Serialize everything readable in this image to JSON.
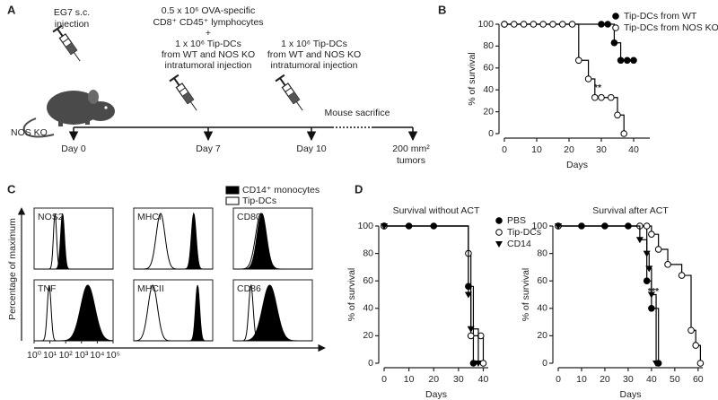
{
  "panel_a": {
    "label": "A",
    "injection_1": [
      "EG7 s.c.",
      "injection"
    ],
    "injection_2": [
      "0.5 x 10⁶ OVA-specific",
      "CD8⁺ CD45⁺ lymphocytes",
      "+",
      "1 x 10⁶ Tip-DCs",
      "from WT and NOS KO",
      "intratumoral injection"
    ],
    "injection_3": [
      "1 x 10⁶ Tip-DCs",
      "from WT and NOS KO",
      "intratumoral injection"
    ],
    "mouse_label": "NOS KO",
    "sacrifice": "Mouse sacrifice",
    "timepoints": [
      "Day 0",
      "Day 7",
      "Day 10"
    ],
    "endpoint": [
      "200 mm²",
      "tumors"
    ]
  },
  "chart_data": [
    {
      "type": "survival",
      "panel": "B",
      "xlabel": "Days",
      "ylabel": "% of survival",
      "xlim": [
        0,
        45
      ],
      "xticks": [
        0,
        10,
        20,
        30,
        40
      ],
      "ylim": [
        0,
        100
      ],
      "yticks": [
        0,
        20,
        40,
        60,
        80,
        100
      ],
      "legend": "top-right",
      "annotation": "**",
      "series": [
        {
          "name": "Tip-DCs from WT",
          "color": "#000000",
          "marker": "filled-circle",
          "x": [
            0,
            30,
            32,
            34,
            36,
            38,
            40
          ],
          "values": [
            100,
            100,
            100,
            83,
            67,
            67,
            67
          ]
        },
        {
          "name": "Tip-DCs from NOS KO",
          "color": "#000000",
          "marker": "open-circle",
          "x": [
            0,
            3,
            6,
            9,
            12,
            15,
            18,
            21,
            23,
            26,
            28,
            30,
            33,
            35,
            37
          ],
          "values": [
            100,
            100,
            100,
            100,
            100,
            100,
            100,
            100,
            67,
            50,
            33,
            33,
            33,
            17,
            0
          ]
        }
      ]
    },
    {
      "type": "flow-histogram",
      "panel": "C",
      "ylabel": "Percentage of maximum",
      "xscale": "log",
      "xlim": [
        1,
        100000
      ],
      "xticks": [
        {
          "value": 1,
          "label": "10⁰"
        },
        {
          "value": 10,
          "label": "10¹"
        },
        {
          "value": 100,
          "label": "10²"
        },
        {
          "value": 1000,
          "label": "10³"
        },
        {
          "value": 10000,
          "label": "10⁴"
        },
        {
          "value": 100000,
          "label": "10⁵"
        }
      ],
      "series": [
        {
          "name": "CD14⁺ monocytes",
          "fill": "#000000",
          "stroke": "#000000"
        },
        {
          "name": "Tip-DCs",
          "fill": "none",
          "stroke": "#000000"
        }
      ],
      "panels": [
        {
          "label": "NOS2",
          "values": [
            {
              "peak": 63,
              "spread": 0.12
            },
            {
              "peak": 21,
              "spread": 0.1
            }
          ]
        },
        {
          "label": "MHCI",
          "values": [
            {
              "peak": 6300,
              "spread": 0.15
            },
            {
              "peak": 50,
              "spread": 0.28
            }
          ]
        },
        {
          "label": "CD80",
          "values": [
            {
              "peak": 63,
              "spread": 0.3
            },
            {
              "peak": 55,
              "spread": 0.33
            }
          ]
        },
        {
          "label": "TNF",
          "values": [
            {
              "peak": 2500,
              "spread": 0.45
            },
            {
              "peak": 9,
              "spread": 0.12
            }
          ]
        },
        {
          "label": "MHCII",
          "values": [
            {
              "peak": 11000,
              "spread": 0.13
            },
            {
              "peak": 16,
              "spread": 0.3
            }
          ]
        },
        {
          "label": "CD86",
          "values": [
            {
              "peak": 200,
              "spread": 0.45
            },
            {
              "peak": 13,
              "spread": 0.14
            }
          ]
        }
      ]
    },
    {
      "type": "survival",
      "panel": "D",
      "title": "Survival without ACT",
      "xlabel": "Days",
      "ylabel": "% of survival",
      "xlim": [
        0,
        42
      ],
      "xticks": [
        0,
        10,
        20,
        30,
        40
      ],
      "ylim": [
        0,
        100
      ],
      "yticks": [
        0,
        20,
        40,
        60,
        80,
        100
      ],
      "legend": "outside-right",
      "series": [
        {
          "name": "PBS",
          "color": "#000000",
          "marker": "filled-circle",
          "x": [
            0,
            10,
            20,
            34,
            36
          ],
          "values": [
            100,
            100,
            100,
            56,
            0
          ]
        },
        {
          "name": "Tip-DCs",
          "color": "#000000",
          "marker": "open-circle",
          "x": [
            0,
            34,
            35,
            39,
            40
          ],
          "values": [
            100,
            80,
            20,
            20,
            0
          ]
        },
        {
          "name": "CD14",
          "color": "#000000",
          "marker": "filled-triangle-down",
          "x": [
            0,
            34,
            35,
            38
          ],
          "values": [
            100,
            50,
            25,
            0
          ]
        }
      ]
    },
    {
      "type": "survival",
      "title": "Survival after ACT",
      "xlabel": "Days",
      "ylabel": "% of survival",
      "xlim": [
        0,
        62
      ],
      "xticks": [
        0,
        10,
        20,
        30,
        40,
        50,
        60
      ],
      "ylim": [
        0,
        100
      ],
      "yticks": [
        0,
        20,
        40,
        60,
        80,
        100
      ],
      "legend": false,
      "annotation": "***",
      "series": [
        {
          "name": "PBS",
          "color": "#000000",
          "marker": "filled-circle",
          "x": [
            0,
            10,
            20,
            30,
            38,
            40,
            43
          ],
          "values": [
            100,
            100,
            100,
            100,
            60,
            40,
            0
          ]
        },
        {
          "name": "Tip-DCs",
          "color": "#000000",
          "marker": "open-circle",
          "x": [
            0,
            35,
            38,
            40,
            43,
            47,
            53,
            57,
            59,
            61
          ],
          "values": [
            100,
            100,
            100,
            94,
            83,
            72,
            64,
            24,
            13,
            0
          ]
        },
        {
          "name": "CD14",
          "color": "#000000",
          "marker": "filled-triangle-down",
          "x": [
            0,
            35,
            38,
            39,
            40,
            42
          ],
          "values": [
            100,
            90,
            80,
            69,
            50,
            0
          ]
        }
      ]
    }
  ]
}
